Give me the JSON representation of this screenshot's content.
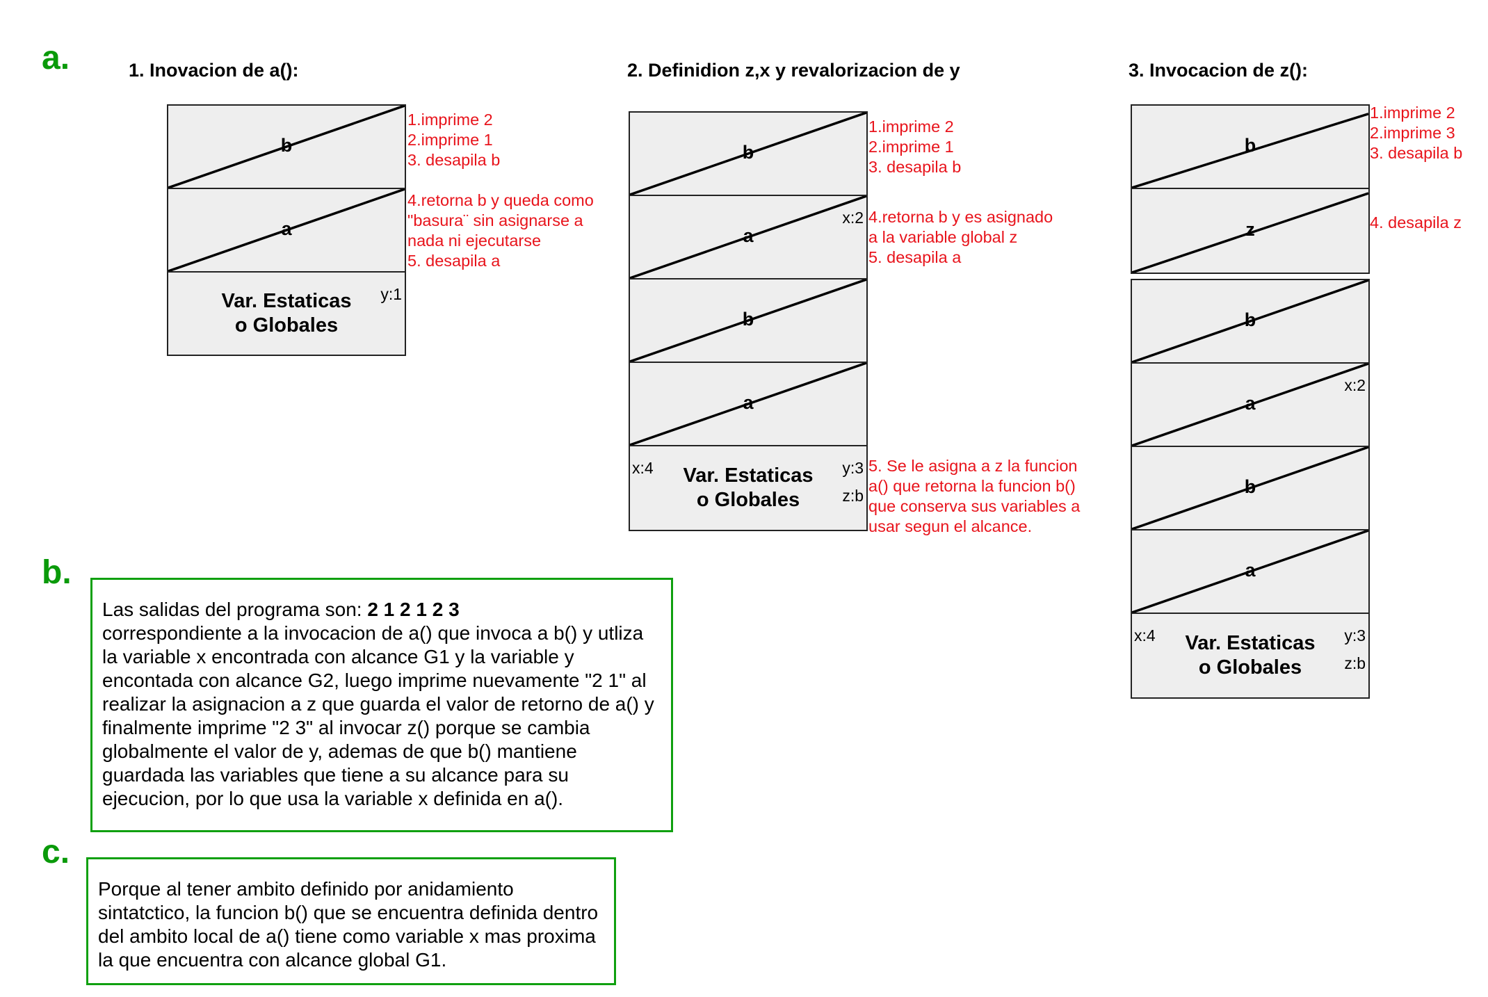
{
  "sections": {
    "a": "a.",
    "b": "b.",
    "c": "c."
  },
  "diagrams": [
    {
      "title": "1. Inovacion de a():",
      "cells": [
        "b",
        "a"
      ],
      "globals": {
        "line1": "Var. Estaticas",
        "line2": "o Globales",
        "vars": [
          "y:1"
        ]
      },
      "notes": [
        [
          "1.imprime 2",
          "2.imprime 1",
          "3. desapila b"
        ],
        [
          "4.retorna b y queda como",
          "\"basura¨ sin asignarse a",
          "nada ni ejecutarse",
          "5. desapila a"
        ]
      ]
    },
    {
      "title": "2. Definidion z,x y revalorizacion de y",
      "cells": [
        "b",
        "a",
        "b",
        "a"
      ],
      "cell_vars": {
        "1": "x:2"
      },
      "globals": {
        "line1": "Var. Estaticas",
        "line2": "o Globales",
        "vars": [
          "x:4",
          "y:3",
          "z:b"
        ]
      },
      "notes": [
        [
          "1.imprime 2",
          "2.imprime 1",
          "3. desapila b"
        ],
        [
          "4.retorna b y  es asignado",
          "a la variable global z",
          "5. desapila a"
        ],
        [
          "5. Se le asigna a z la funcion",
          "a() que retorna la funcion b()",
          "que conserva sus variables a",
          "usar segun el alcance."
        ]
      ]
    },
    {
      "title": "3. Invocacion de z():",
      "cells_top": [
        "b",
        "z"
      ],
      "cells": [
        "b",
        "a",
        "b",
        "a"
      ],
      "cell_vars": {
        "1": "x:2"
      },
      "globals": {
        "line1": "Var. Estaticas",
        "line2": "o Globales",
        "vars": [
          "x:4",
          "y:3",
          "z:b"
        ]
      },
      "notes": [
        [
          "1.imprime 2",
          "2.imprime 3",
          "3. desapila b"
        ],
        [
          "4. desapila z"
        ]
      ]
    }
  ],
  "answer_b": {
    "lead": "Las salidas del programa son: ",
    "outputs": "2 1 2 1 2 3",
    "lines": [
      "correspondiente a la invocacion de a() que invoca a b() y utliza",
      "la variable x encontrada con alcance G1 y la variable y",
      "encontada con alcance G2, luego imprime nuevamente \"2 1\" al",
      "realizar la asignacion a z que guarda el valor de retorno de a() y",
      "finalmente imprime \"2 3\" al invocar z() porque se cambia",
      "globalmente el valor de y, ademas de que b() mantiene",
      "guardada las variables que tiene a su alcance para su",
      "ejecucion, por lo que usa la variable x definida en a()."
    ]
  },
  "answer_c": {
    "lines": [
      "Porque al tener ambito definido por anidamiento",
      "sintatctico, la funcion b() que se encuentra definida dentro",
      "del ambito local de a() tiene como variable x mas proxima",
      "la que encuentra con alcance global G1."
    ]
  },
  "colors": {
    "section": "#0a9a0a",
    "note": "#e8141c",
    "box_border": "#10a010",
    "cell_fill": "#eeeeee"
  }
}
